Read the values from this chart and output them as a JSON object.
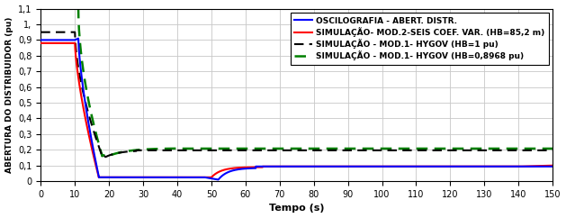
{
  "title": "",
  "xlabel": "Tempo (s)",
  "ylabel": "ABERTURA DO DISTRIBUIDOR (pu)",
  "xlim": [
    0,
    150
  ],
  "ylim": [
    0,
    1.1
  ],
  "ytick_vals": [
    0,
    0.1,
    0.2,
    0.3,
    0.4,
    0.5,
    0.6,
    0.7,
    0.8,
    0.9,
    1.0,
    1.1
  ],
  "ytick_labels": [
    "0",
    "0,1",
    "0,2",
    "0,3",
    "0,4",
    "0,5",
    "0,6",
    "0,7",
    "0,8",
    "0,9",
    "1,",
    "1,1"
  ],
  "xticks": [
    0,
    10,
    20,
    30,
    40,
    50,
    60,
    70,
    80,
    90,
    100,
    110,
    120,
    130,
    140,
    150
  ],
  "legend_labels": [
    "OSCILOGRAFIA - ABERT. DISTR.",
    "SIMULAÇÃO- MOD.2-SEIS COEF. VAR. (HB=85,2 m)",
    "SIMULAÇÃO - MOD.1- HYGOV (HB=1 pu)",
    "SIMULAÇÃO - MOD.1- HYGOV (HB=0,8968 pu)"
  ],
  "background_color": "#ffffff",
  "grid_color": "#c8c8c8",
  "figsize": [
    6.29,
    2.42
  ],
  "dpi": 100
}
